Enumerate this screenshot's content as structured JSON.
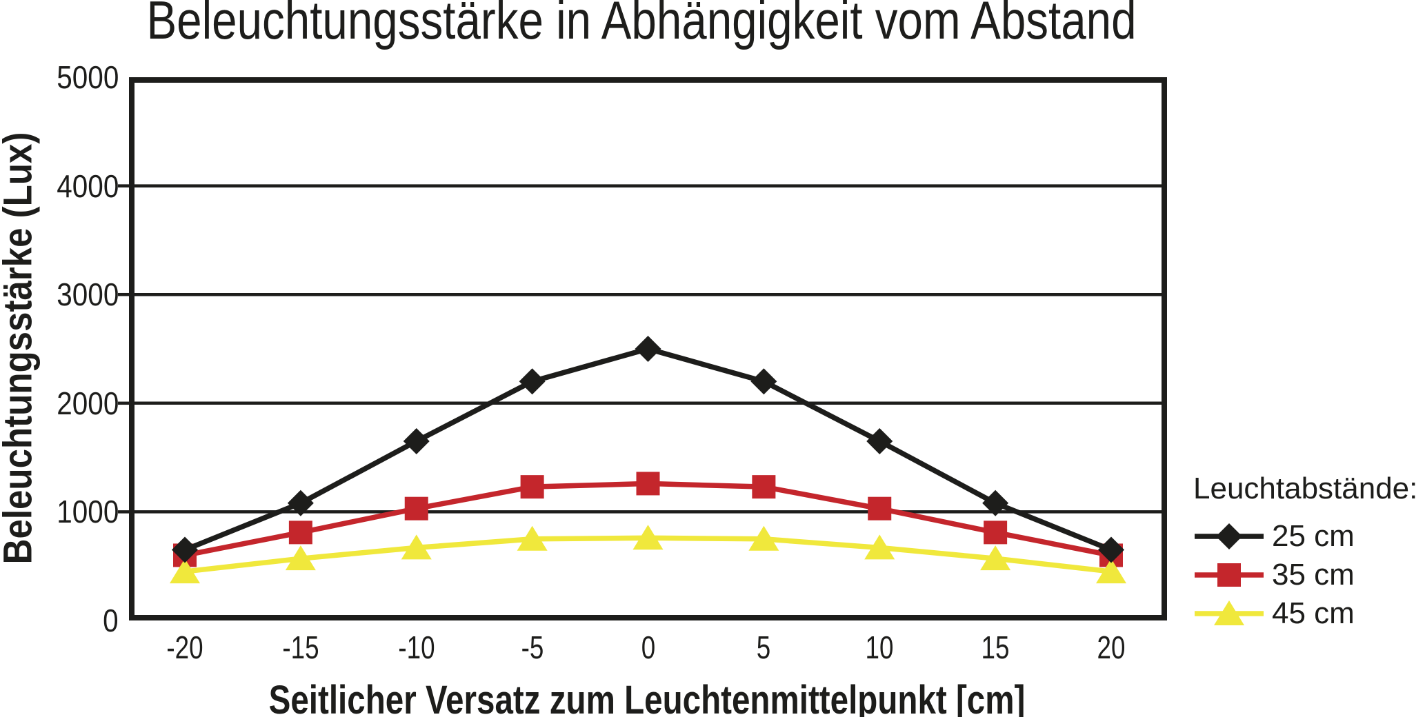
{
  "chart_data": {
    "type": "line",
    "title": "Beleuchtungsstärke in Abhängigkeit vom Abstand",
    "xlabel": "Seitlicher Versatz zum Leuchtenmittelpunkt [cm]",
    "ylabel": "Beleuchtungsstärke (Lux)",
    "legend_title": "Leuchtabstände:",
    "legend_position": "right",
    "grid": "horizontal",
    "x": [
      -20,
      -15,
      -10,
      -5,
      0,
      5,
      10,
      15,
      20
    ],
    "xticks": [
      -20,
      -15,
      -10,
      -5,
      0,
      5,
      10,
      15,
      20
    ],
    "yticks": [
      0,
      1000,
      2000,
      3000,
      4000,
      5000
    ],
    "xlim": [
      -22.4,
      22.4
    ],
    "ylim": [
      0,
      5000
    ],
    "axis_color": "#1d1d1b",
    "series": [
      {
        "name": "25 cm",
        "color": "#1d1d1b",
        "marker": "diamond",
        "values": [
          650,
          1080,
          1650,
          2200,
          2500,
          2200,
          1650,
          1080,
          650
        ]
      },
      {
        "name": "35 cm",
        "color": "#c4262c",
        "marker": "square",
        "values": [
          600,
          810,
          1030,
          1230,
          1260,
          1230,
          1030,
          810,
          600
        ]
      },
      {
        "name": "45 cm",
        "color": "#f0e83c",
        "marker": "triangle",
        "values": [
          450,
          570,
          670,
          750,
          760,
          750,
          670,
          570,
          450
        ]
      }
    ]
  }
}
